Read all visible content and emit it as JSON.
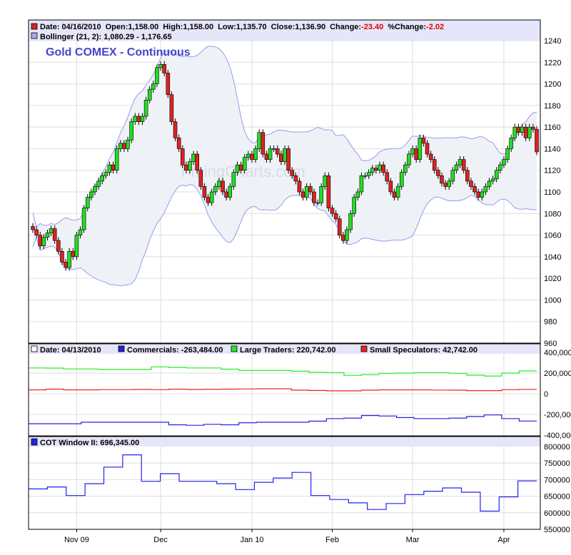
{
  "colors": {
    "up": "#22dd22",
    "down": "#dd2222",
    "band": "#9999ee",
    "band_fill": "#eef2f7",
    "legend_bg": "#e6e6fa",
    "title": "#4444cc",
    "commercials": "#2222dd",
    "large": "#22ee22",
    "small": "#ee2222",
    "cot": "#2222ee"
  },
  "watermark": "TimingCharts.com",
  "chart_data": [
    {
      "type": "candlestick",
      "title": "Gold COMEX - Continuous",
      "legend": {
        "date_label": "Date: 04/16/2010",
        "open_label": "Open:1,158.00",
        "high_label": "High:1,158.00",
        "low_label": "Low:1,135.70",
        "close_label": "Close:1,136.90",
        "change_label": "Change:",
        "change_value": "-23.40",
        "pct_label": "%Change:",
        "pct_value": "-2.02",
        "bollinger": "Bollinger (21, 2): 1,080.29 - 1,176.65"
      },
      "ylim": [
        960,
        1240
      ],
      "yticks": [
        "960",
        "980",
        "1000",
        "1020",
        "1040",
        "1060",
        "1080",
        "1100",
        "1120",
        "1140",
        "1160",
        "1180",
        "1200",
        "1220",
        "1240"
      ],
      "closes": [
        1065,
        1060,
        1050,
        1058,
        1062,
        1066,
        1055,
        1045,
        1035,
        1030,
        1045,
        1040,
        1060,
        1065,
        1085,
        1095,
        1100,
        1105,
        1110,
        1115,
        1118,
        1125,
        1120,
        1140,
        1145,
        1140,
        1148,
        1165,
        1170,
        1165,
        1170,
        1185,
        1195,
        1200,
        1215,
        1218,
        1210,
        1190,
        1165,
        1150,
        1140,
        1125,
        1120,
        1128,
        1135,
        1120,
        1105,
        1095,
        1090,
        1100,
        1105,
        1110,
        1100,
        1095,
        1105,
        1118,
        1125,
        1120,
        1132,
        1135,
        1130,
        1140,
        1155,
        1135,
        1130,
        1140,
        1140,
        1135,
        1128,
        1140,
        1120,
        1115,
        1110,
        1100,
        1095,
        1105,
        1100,
        1090,
        1090,
        1105,
        1115,
        1085,
        1080,
        1075,
        1060,
        1055,
        1065,
        1080,
        1095,
        1100,
        1115,
        1115,
        1118,
        1122,
        1120,
        1125,
        1118,
        1110,
        1100,
        1095,
        1105,
        1118,
        1125,
        1135,
        1140,
        1130,
        1150,
        1145,
        1135,
        1130,
        1120,
        1115,
        1108,
        1105,
        1110,
        1120,
        1125,
        1130,
        1120,
        1110,
        1105,
        1100,
        1095,
        1100,
        1105,
        1110,
        1112,
        1120,
        1125,
        1130,
        1140,
        1150,
        1160,
        1155,
        1160,
        1150,
        1160,
        1158,
        1137
      ],
      "bollinger_period": 21,
      "bollinger_k": 2
    },
    {
      "type": "line",
      "legend": {
        "date_label": "Date: 04/13/2010",
        "commercials": "Commercials: -263,484.00",
        "large": "Large Traders: 220,742.00",
        "small": "Small Speculators: 42,742.00"
      },
      "ylim": [
        -400000,
        400000
      ],
      "yticks": [
        "-400,000",
        "-200,000",
        "0",
        "200,000",
        "400,000"
      ],
      "series": [
        {
          "name": "Commercials",
          "values": [
            -290000,
            -290000,
            -290000,
            -275000,
            -275000,
            -275000,
            -275000,
            -275000,
            -300000,
            -305000,
            -295000,
            -300000,
            -280000,
            -275000,
            -275000,
            -275000,
            -265000,
            -240000,
            -235000,
            -210000,
            -215000,
            -230000,
            -240000,
            -240000,
            -235000,
            -220000,
            -205000,
            -240000,
            -263484
          ]
        },
        {
          "name": "Large Traders",
          "values": [
            250000,
            248000,
            240000,
            240000,
            235000,
            235000,
            235000,
            260000,
            255000,
            250000,
            250000,
            238000,
            225000,
            225000,
            225000,
            218000,
            208000,
            205000,
            178000,
            185000,
            198000,
            200000,
            205000,
            205000,
            198000,
            180000,
            172000,
            200000,
            220742
          ]
        },
        {
          "name": "Small Speculators",
          "values": [
            38000,
            45000,
            38000,
            38000,
            40000,
            40000,
            42000,
            40000,
            45000,
            42000,
            44000,
            45000,
            47000,
            48000,
            48000,
            35000,
            32000,
            28000,
            28000,
            35000,
            38000,
            38000,
            38000,
            36000,
            35000,
            30000,
            30000,
            40000,
            42742
          ]
        }
      ]
    },
    {
      "type": "line",
      "legend": "COT Window II: 696,345.00",
      "ylim": [
        550000,
        800000
      ],
      "yticks": [
        "550000",
        "600000",
        "650000",
        "700000",
        "750000",
        "800000"
      ],
      "values": [
        672000,
        678000,
        652000,
        688000,
        738000,
        775000,
        695000,
        718000,
        695000,
        695000,
        688000,
        670000,
        692000,
        705000,
        722000,
        652000,
        640000,
        630000,
        610000,
        628000,
        655000,
        665000,
        675000,
        662000,
        605000,
        648000,
        696345
      ]
    }
  ],
  "xaxis": {
    "ticks": [
      {
        "label": "Nov 09",
        "day": 12
      },
      {
        "label": "Dec",
        "day": 35
      },
      {
        "label": "Jan 10",
        "day": 60
      },
      {
        "label": "Feb",
        "day": 82
      },
      {
        "label": "Mar",
        "day": 104
      },
      {
        "label": "Apr",
        "day": 129
      }
    ]
  }
}
